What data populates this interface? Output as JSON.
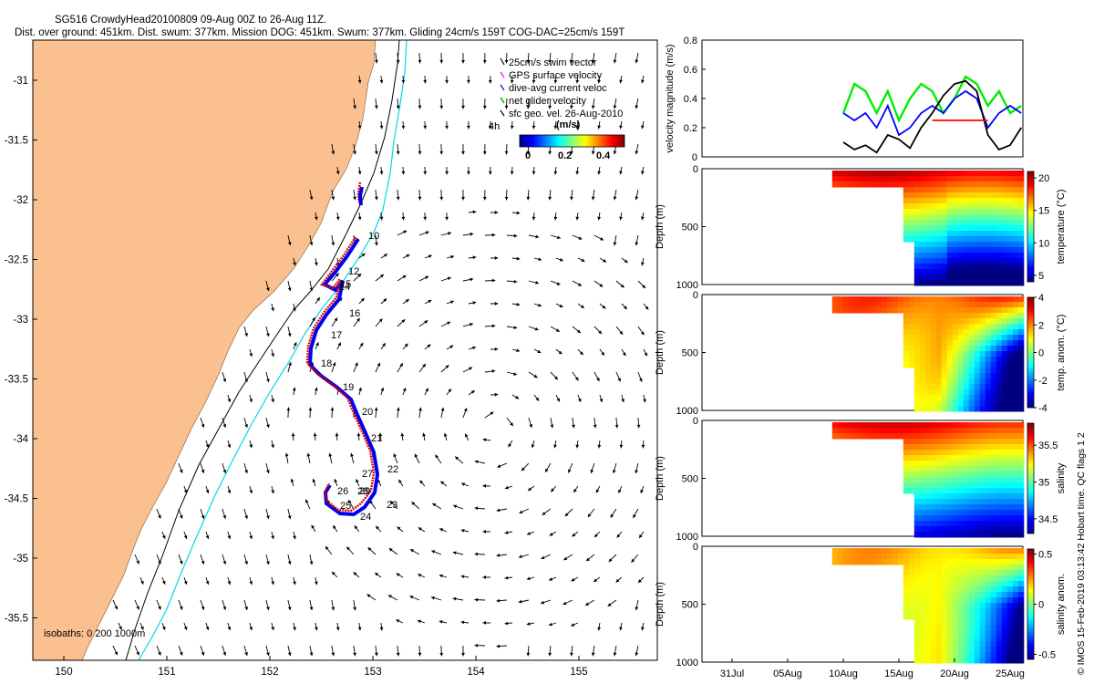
{
  "header": {
    "title_line1": "SG516 CrowdyHead20100809 09-Aug 00Z to 26-Aug 11Z.",
    "title_line2": "Dist. over ground: 451km. Dist. swum: 377km. Mission DOG: 451km. Swum: 377km. Gliding 24cm/s 159T COG-DAC=25cm/s 159T"
  },
  "map": {
    "legend": [
      {
        "label": "25cm/s swim vector",
        "color": "#000000"
      },
      {
        "label": "GPS surface velocity",
        "color": "#ff00ff"
      },
      {
        "label": "dive-avg current veloc",
        "color": "#0000ff"
      },
      {
        "label": "net glider velocity",
        "color": "#00cc00"
      },
      {
        "label": "sfc geo. vel. 26-Aug-2010",
        "color": "#000000"
      }
    ],
    "scale_label": "4h",
    "colorbar": {
      "title": "(m/s)",
      "ticks": [
        "0",
        "0.2",
        "0.4"
      ]
    },
    "isobath_label": "isobaths: 0  200  1000m",
    "x_ticks": [
      "150",
      "151",
      "152",
      "153",
      "154",
      "155"
    ],
    "y_ticks": [
      "-31",
      "-31.5",
      "-32",
      "-32.5",
      "-33",
      "-33.5",
      "-34",
      "-34.5",
      "-35",
      "-35.5"
    ],
    "day_labels": [
      "10",
      "12",
      "15",
      "14",
      "16",
      "17",
      "18",
      "19",
      "20",
      "21",
      "22",
      "27",
      "26",
      "28",
      "29",
      "25",
      "23",
      "24"
    ],
    "colors": {
      "land": "#fbc08f",
      "isobath200": "#000000",
      "isobath1000": "#00d8e8",
      "track_red": "#dd0000",
      "track_blue": "#0000ee"
    }
  },
  "chart_data": [
    {
      "type": "line",
      "ylabel": "velocity magnitude (m/s)",
      "ylim": [
        0,
        0.8
      ],
      "y_ticks": [
        "0",
        "0.2",
        "0.4",
        "0.6",
        "0.8"
      ],
      "series": [
        {
          "color": "#00ee00",
          "x": [
            "10Aug",
            "11Aug",
            "12Aug",
            "13Aug",
            "14Aug",
            "15Aug",
            "16Aug",
            "17Aug",
            "18Aug",
            "19Aug",
            "20Aug",
            "21Aug",
            "22Aug",
            "23Aug",
            "24Aug",
            "25Aug",
            "26Aug"
          ],
          "values": [
            0.3,
            0.5,
            0.45,
            0.3,
            0.45,
            0.25,
            0.4,
            0.5,
            0.45,
            0.3,
            0.4,
            0.55,
            0.5,
            0.35,
            0.45,
            0.3,
            0.35
          ]
        },
        {
          "color": "#0000ff",
          "x": [
            "10Aug",
            "11Aug",
            "12Aug",
            "13Aug",
            "14Aug",
            "15Aug",
            "16Aug",
            "17Aug",
            "18Aug",
            "19Aug",
            "20Aug",
            "21Aug",
            "22Aug",
            "23Aug",
            "24Aug",
            "25Aug",
            "26Aug"
          ],
          "values": [
            0.3,
            0.25,
            0.3,
            0.2,
            0.35,
            0.15,
            0.2,
            0.3,
            0.35,
            0.3,
            0.4,
            0.45,
            0.4,
            0.2,
            0.3,
            0.35,
            0.3
          ]
        },
        {
          "color": "#000000",
          "x": [
            "10Aug",
            "11Aug",
            "12Aug",
            "13Aug",
            "14Aug",
            "15Aug",
            "16Aug",
            "17Aug",
            "18Aug",
            "19Aug",
            "20Aug",
            "21Aug",
            "22Aug",
            "23Aug",
            "24Aug",
            "25Aug",
            "26Aug"
          ],
          "values": [
            0.1,
            0.05,
            0.08,
            0.03,
            0.15,
            0.12,
            0.06,
            0.2,
            0.3,
            0.42,
            0.5,
            0.52,
            0.45,
            0.15,
            0.05,
            0.08,
            0.2
          ]
        },
        {
          "color": "#ff0000",
          "x": [
            "18Aug",
            "23Aug"
          ],
          "values": [
            0.25,
            0.25
          ]
        }
      ]
    },
    {
      "type": "heatmap",
      "ylabel": "Depth (m)",
      "colorbar_label": "temperature (°C)",
      "y_ticks": [
        "0",
        "500",
        "1000"
      ],
      "colorbar_ticks": [
        "20",
        "15",
        "10",
        "5"
      ],
      "clim": [
        4,
        21
      ]
    },
    {
      "type": "heatmap",
      "ylabel": "Depth (m)",
      "colorbar_label": "temp. anom. (°C)",
      "y_ticks": [
        "0",
        "500",
        "1000"
      ],
      "colorbar_ticks": [
        "4",
        "2",
        "0",
        "-2",
        "-4"
      ],
      "clim": [
        -4,
        4
      ]
    },
    {
      "type": "heatmap",
      "ylabel": "Depth (m)",
      "colorbar_label": "salinity",
      "y_ticks": [
        "0",
        "500",
        "1000"
      ],
      "colorbar_ticks": [
        "35.5",
        "35",
        "34.5"
      ],
      "clim": [
        34.3,
        35.8
      ]
    },
    {
      "type": "heatmap",
      "ylabel": "Depth (m)",
      "colorbar_label": "salinity anom.",
      "y_ticks": [
        "0",
        "500",
        "1000"
      ],
      "colorbar_ticks": [
        "0.5",
        "0",
        "-0.5"
      ],
      "clim": [
        -0.55,
        0.55
      ],
      "x_ticks": [
        "31Jul",
        "05Aug",
        "10Aug",
        "15Aug",
        "20Aug",
        "25Aug"
      ]
    }
  ],
  "footer": {
    "side_text": "© IMOS 15-Feb-2019 03:13:42 Hobart time. QC flags 1  2"
  }
}
